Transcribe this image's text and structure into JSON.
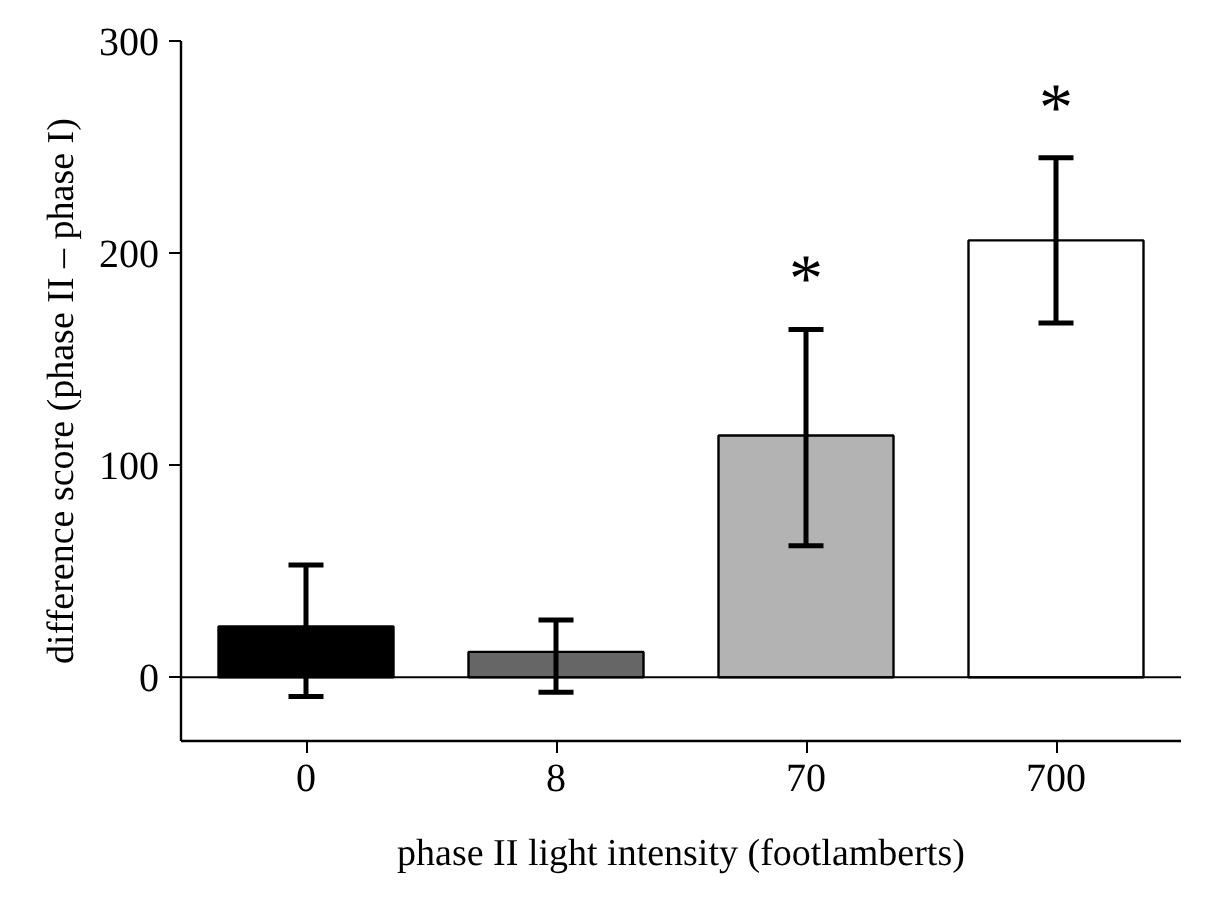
{
  "chart_data": {
    "type": "bar",
    "xlabel": "phase II light intensity (footlamberts)",
    "ylabel": "difference score (phase II – phase I)",
    "categories": [
      "0",
      "8",
      "70",
      "700"
    ],
    "values": [
      24,
      12,
      114,
      206
    ],
    "colors": [
      "#000000",
      "#666666",
      "#b3b3b3",
      "#ffffff"
    ],
    "errors": [
      [
        -9,
        53
      ],
      [
        -7,
        27
      ],
      [
        62,
        164
      ],
      [
        167,
        245
      ]
    ],
    "ylim": [
      -30,
      300
    ],
    "yticks": [
      0,
      100,
      200,
      300
    ],
    "ref_lines": [
      {
        "axis": "y",
        "value": 0,
        "label": null
      }
    ],
    "annotations": [
      "*",
      "*"
    ]
  }
}
